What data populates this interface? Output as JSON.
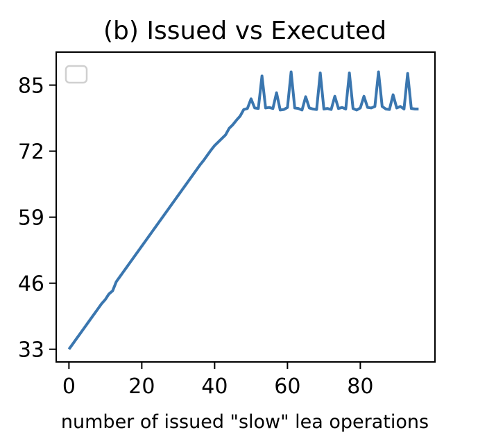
{
  "chart_data": {
    "type": "line",
    "title": "(b) Issued vs Executed",
    "xlabel": "number of issued \"slow\" lea operations",
    "ylabel": "",
    "xlim": [
      -3.5,
      100.5
    ],
    "ylim": [
      30.5,
      91.5
    ],
    "xticks": [
      0,
      20,
      40,
      60,
      80
    ],
    "yticks": [
      33,
      46,
      59,
      72,
      85
    ],
    "grid": false,
    "legend": {
      "placement": "top-left",
      "entries": []
    },
    "series": [
      {
        "color": "#3a76af",
        "x": [
          0,
          1,
          2,
          3,
          4,
          5,
          6,
          7,
          8,
          9,
          10,
          11,
          12,
          13,
          14,
          15,
          16,
          17,
          18,
          19,
          20,
          21,
          22,
          23,
          24,
          25,
          26,
          27,
          28,
          29,
          30,
          31,
          32,
          33,
          34,
          35,
          36,
          37,
          38,
          39,
          40,
          41,
          42,
          43,
          44,
          45,
          46,
          47,
          48,
          49,
          50,
          51,
          52,
          53,
          54,
          55,
          56,
          57,
          58,
          59,
          60,
          61,
          62,
          63,
          64,
          65,
          66,
          67,
          68,
          69,
          70,
          71,
          72,
          73,
          74,
          75,
          76,
          77,
          78,
          79,
          80,
          81,
          82,
          83,
          84,
          85,
          86,
          87,
          88,
          89,
          90,
          91,
          92,
          93,
          94,
          95,
          96
        ],
        "y": [
          33,
          34,
          35,
          36,
          37,
          38,
          39,
          40,
          41,
          42,
          42.8,
          43.9,
          44.5,
          46.3,
          47.3,
          48.3,
          49.3,
          50.3,
          51.3,
          52.3,
          53.3,
          54.3,
          55.3,
          56.3,
          57.3,
          58.3,
          59.3,
          60.3,
          61.3,
          62.3,
          63.3,
          64.3,
          65.3,
          66.3,
          67.3,
          68.3,
          69.3,
          70.2,
          71.2,
          72.2,
          73.1,
          73.8,
          74.5,
          75.2,
          76.5,
          77.2,
          78.1,
          78.9,
          80.2,
          80.4,
          82.3,
          80.5,
          80.4,
          86.8,
          80.5,
          80.6,
          80.4,
          83.5,
          80.1,
          80.2,
          80.6,
          87.6,
          80.5,
          80.4,
          80.1,
          82.7,
          80.5,
          80.3,
          80.2,
          87.4,
          80.3,
          80.4,
          80.2,
          82.8,
          80.4,
          80.6,
          80.3,
          87.4,
          80.4,
          80.1,
          80.5,
          82.8,
          80.6,
          80.5,
          80.8,
          87.6,
          80.8,
          80.3,
          80.2,
          83.1,
          80.5,
          80.8,
          80.3,
          87.3,
          80.4,
          80.3,
          80.3
        ]
      }
    ]
  }
}
